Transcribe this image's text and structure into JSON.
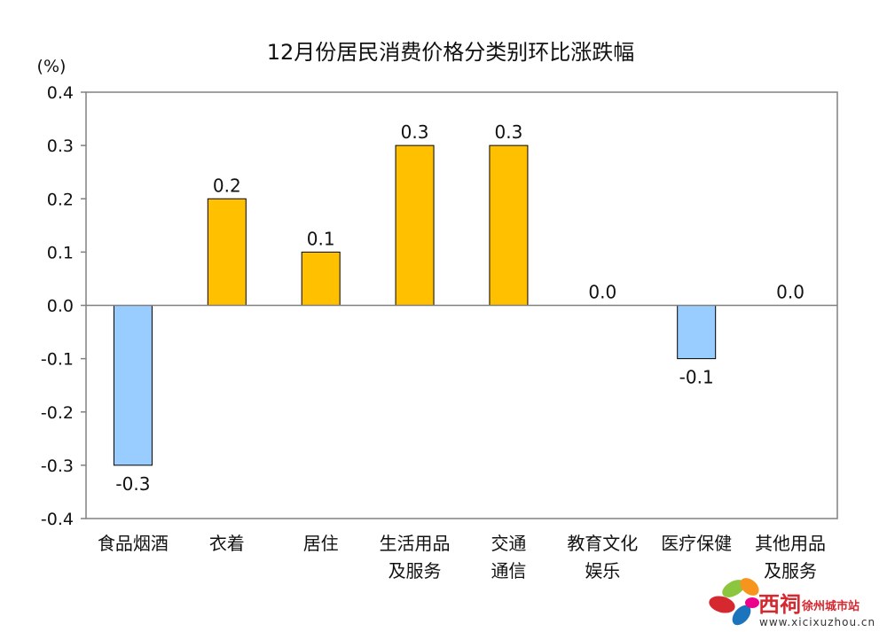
{
  "chart_data": {
    "type": "bar",
    "title": "12月份居民消费价格分类别环比涨跌幅",
    "ylabel": "(%)",
    "ylim": [
      -0.4,
      0.4
    ],
    "yticks": [
      "0.4",
      "0.3",
      "0.2",
      "0.1",
      "0.0",
      "-0.1",
      "-0.2",
      "-0.3",
      "-0.4"
    ],
    "categories": [
      [
        "食品烟酒"
      ],
      [
        "衣着"
      ],
      [
        "居住"
      ],
      [
        "生活用品",
        "及服务"
      ],
      [
        "交通",
        "通信"
      ],
      [
        "教育文化",
        "娱乐"
      ],
      [
        "医疗保健"
      ],
      [
        "其他用品",
        "及服务"
      ]
    ],
    "values": [
      -0.3,
      0.2,
      0.1,
      0.3,
      0.3,
      0.0,
      -0.1,
      0.0
    ],
    "data_labels": [
      "-0.3",
      "0.2",
      "0.1",
      "0.3",
      "0.3",
      "0.0",
      "-0.1",
      "0.0"
    ],
    "grid": false,
    "colors": {
      "positive": "#ffc000",
      "negative": "#99ccff",
      "bar_border": "#000000",
      "axis": "#808080"
    }
  },
  "watermark": {
    "brand": "西祠",
    "site": "徐州城市站",
    "url": "www.xicixuzhou.cn"
  }
}
